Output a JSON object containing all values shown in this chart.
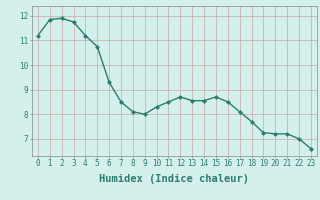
{
  "x": [
    0,
    1,
    2,
    3,
    4,
    5,
    6,
    7,
    8,
    9,
    10,
    11,
    12,
    13,
    14,
    15,
    16,
    17,
    18,
    19,
    20,
    21,
    22,
    23
  ],
  "y": [
    11.2,
    11.85,
    11.9,
    11.75,
    11.2,
    10.75,
    9.3,
    8.5,
    8.1,
    8.0,
    8.3,
    8.5,
    8.7,
    8.55,
    8.55,
    8.7,
    8.5,
    8.1,
    7.7,
    7.25,
    7.2,
    7.2,
    7.0,
    6.6
  ],
  "line_color": "#2d7d6e",
  "marker": "D",
  "marker_size": 2,
  "bg_color": "#d4f0ec",
  "grid_color": "#c8a8a8",
  "xlabel": "Humidex (Indice chaleur)",
  "xlabel_fontsize": 7.5,
  "xlim": [
    -0.5,
    23.5
  ],
  "ylim": [
    6.3,
    12.4
  ],
  "yticks": [
    7,
    8,
    9,
    10,
    11,
    12
  ],
  "xticks": [
    0,
    1,
    2,
    3,
    4,
    5,
    6,
    7,
    8,
    9,
    10,
    11,
    12,
    13,
    14,
    15,
    16,
    17,
    18,
    19,
    20,
    21,
    22,
    23
  ],
  "tick_fontsize": 5.5,
  "line_width": 1.0,
  "tick_color": "#2d7d6e",
  "label_color": "#2d7d6e"
}
